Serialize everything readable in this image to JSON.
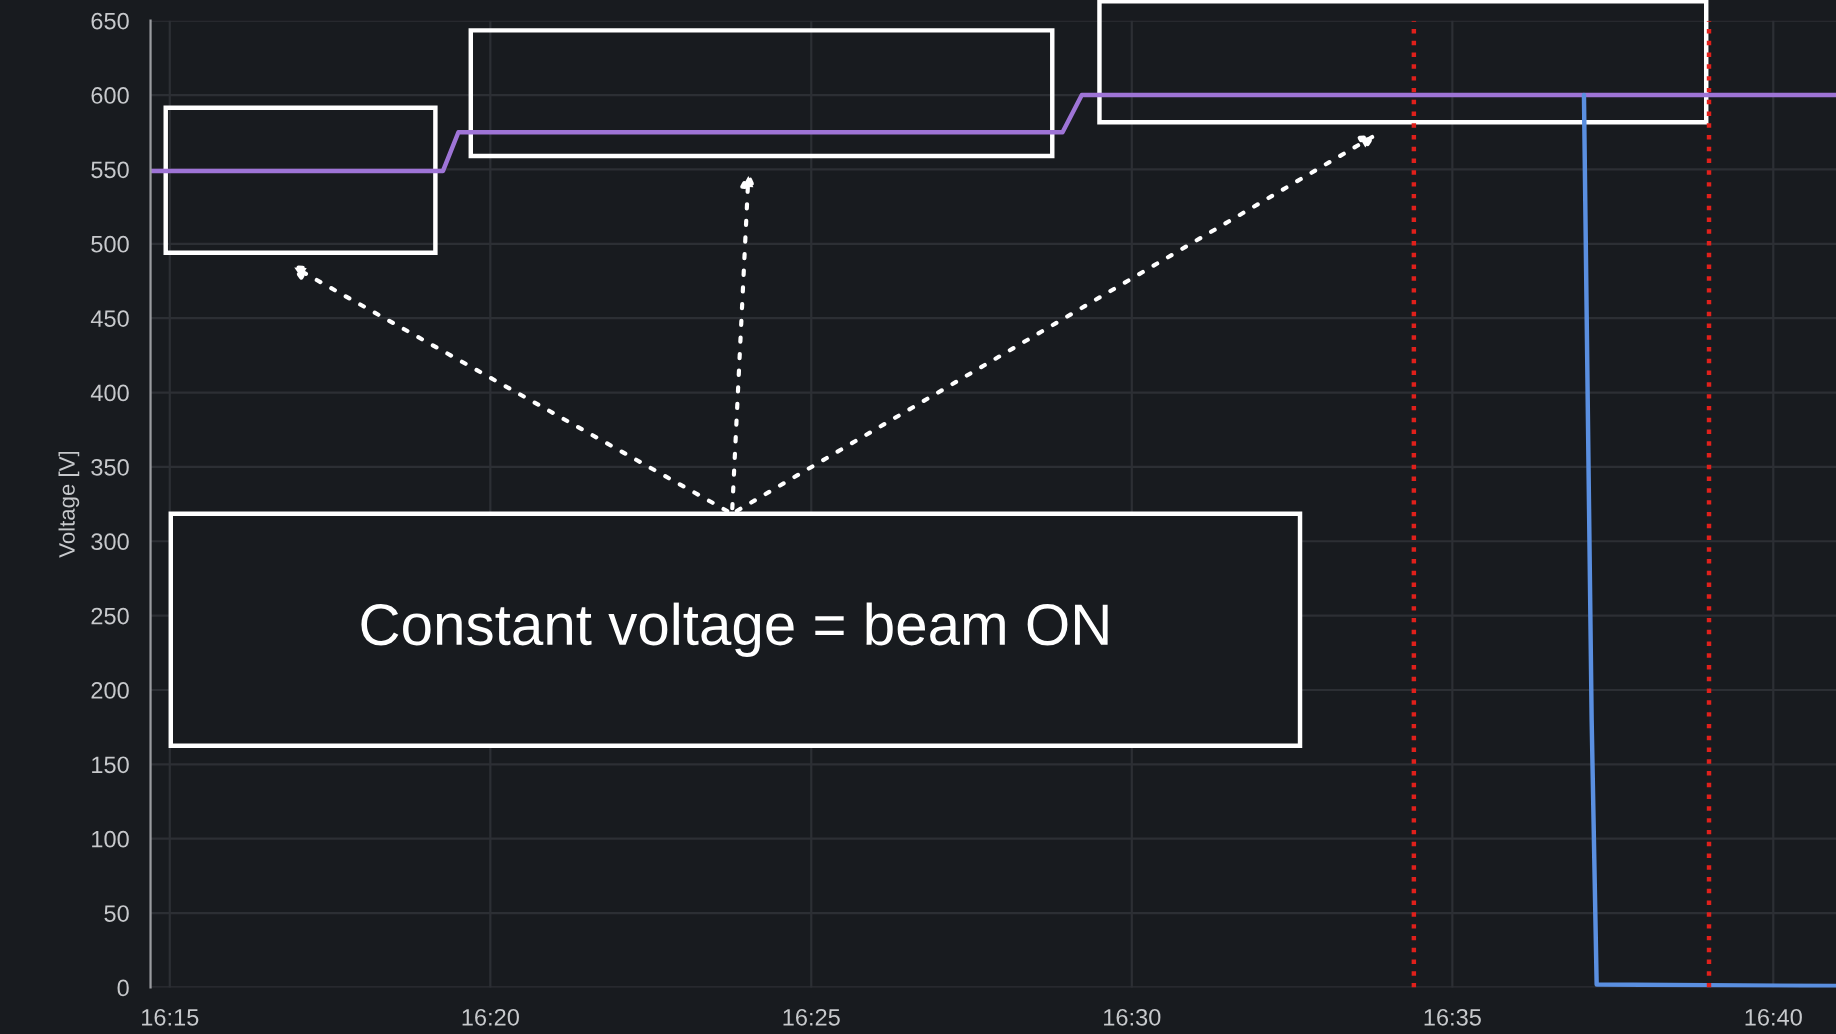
{
  "chart_data": {
    "type": "line",
    "ylabel": "Voltage [V]",
    "annotations": [
      "Constant voltage = beam ON"
    ],
    "series": [
      {
        "color": "#9e74d6",
        "x": [
          16.245,
          16.321,
          16.325,
          16.482,
          16.487,
          16.683
        ],
        "values": [
          549,
          549,
          575,
          575,
          600,
          600
        ]
      },
      {
        "color": "#5a8fe0",
        "x": [
          16.6175,
          16.6195,
          16.6208,
          16.683
        ],
        "values": [
          600,
          180,
          2,
          1
        ]
      }
    ],
    "xlim": [
      16.245,
      16.683
    ],
    "xticks": [
      {
        "value": 16.25,
        "label": "16:15"
      },
      {
        "value": 16.3333,
        "label": "16:20"
      },
      {
        "value": 16.4167,
        "label": "16:25"
      },
      {
        "value": 16.5,
        "label": "16:30"
      },
      {
        "value": 16.5833,
        "label": "16:35"
      },
      {
        "value": 16.6667,
        "label": "16:40"
      }
    ],
    "ylim": [
      0,
      650
    ],
    "yticks": [
      0,
      50,
      100,
      150,
      200,
      250,
      300,
      350,
      400,
      450,
      500,
      550,
      600,
      650
    ],
    "ref_lines": [
      {
        "axis": "x",
        "value": 16.5733,
        "color": "#e0201b",
        "line_style": "dotted"
      },
      {
        "axis": "x",
        "value": 16.65,
        "color": "#e0201b",
        "line_style": "dotted"
      }
    ],
    "grid": true
  }
}
